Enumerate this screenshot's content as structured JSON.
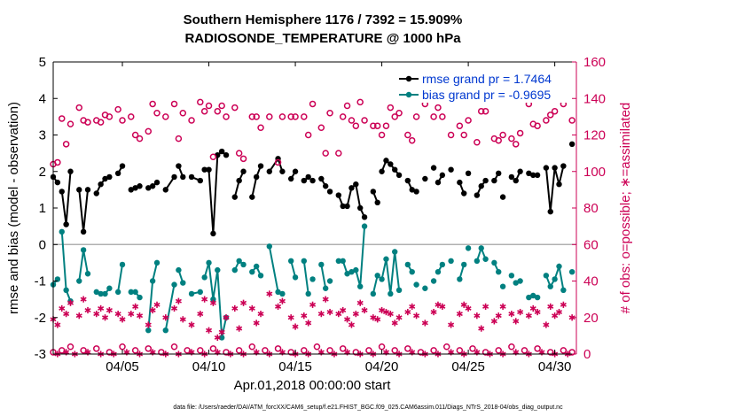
{
  "colors": {
    "rmse": "#000000",
    "bias": "#008080",
    "obs": "#cc0055",
    "zero_line": "#b0b0b0",
    "legend_text": "#0038d0"
  },
  "footer": "data file: /Users/raeder/DAI/ATM_forcXX/CAM6_setup/f.e21.FHIST_BGC.f09_025.CAM6assim.011/Diags_NTrS_2018-04/obs_diag_output.nc",
  "chart_data": {
    "type": "line",
    "title": "Southern Hemisphere 1176 / 7392 = 15.909%",
    "subtitle": "RADIOSONDE_TEMPERATURE @ 1000 hPa",
    "xlabel": "Apr.01,2018 00:00:00 start",
    "ylabel": "rmse and bias (model - observation)",
    "y2label": "# of obs: o=possible; ∗=assimilated",
    "xlim": [
      1.0,
      31.25
    ],
    "ylim": [
      -3,
      5
    ],
    "y2lim": [
      0,
      160
    ],
    "xticks": [
      5,
      10,
      15,
      20,
      25,
      30
    ],
    "xtick_labels": [
      "04/05",
      "04/10",
      "04/15",
      "04/20",
      "04/25",
      "04/30"
    ],
    "yticks": [
      -3,
      -2,
      -1,
      0,
      1,
      2,
      3,
      4,
      5
    ],
    "y2ticks": [
      0,
      20,
      40,
      60,
      80,
      100,
      120,
      140,
      160
    ],
    "grid": false,
    "zero_line": true,
    "legend": {
      "position": "top-right",
      "entries": [
        "rmse grand pr = 1.7464",
        "bias grand pr = -0.9695"
      ]
    },
    "time_step_days": 0.25,
    "series": [
      {
        "role": "rmse",
        "axis": "left",
        "x": [
          1.0,
          1.25,
          1.5,
          1.75,
          2.0,
          2.5,
          2.75,
          3.0,
          3.5,
          3.75,
          4.0,
          4.25,
          4.75,
          5.0,
          5.5,
          5.75,
          6.0,
          6.5,
          6.75,
          7.0,
          7.5,
          8.0,
          8.25,
          8.5,
          9.0,
          9.5,
          9.75,
          10.0,
          10.25,
          10.5,
          10.75,
          11.0,
          11.5,
          11.75,
          12.0,
          12.5,
          12.75,
          13.0,
          13.5,
          14.0,
          14.25,
          14.75,
          15.0,
          15.5,
          15.75,
          16.0,
          16.5,
          16.75,
          17.0,
          17.5,
          17.75,
          18.0,
          18.25,
          18.5,
          18.75,
          19.0,
          19.5,
          19.75,
          20.0,
          20.25,
          20.5,
          20.75,
          21.0,
          21.5,
          21.75,
          22.0,
          22.5,
          23.0,
          23.25,
          23.5,
          24.0,
          24.5,
          24.75,
          25.0,
          25.5,
          25.75,
          26.0,
          26.5,
          26.75,
          27.0,
          27.5,
          27.75,
          28.0,
          28.5,
          28.75,
          29.0,
          29.5,
          29.75,
          30.0,
          30.25,
          30.5,
          31.0
        ],
        "y": [
          1.85,
          1.7,
          1.45,
          0.55,
          2.0,
          1.5,
          0.35,
          1.5,
          1.4,
          1.65,
          1.8,
          1.85,
          1.95,
          2.15,
          1.5,
          1.55,
          1.6,
          1.55,
          1.6,
          1.7,
          1.5,
          1.85,
          2.15,
          1.85,
          1.85,
          1.75,
          2.05,
          2.05,
          0.3,
          2.45,
          2.55,
          2.45,
          1.3,
          1.75,
          2.0,
          1.3,
          1.85,
          2.15,
          2.0,
          2.35,
          2.0,
          1.8,
          2.0,
          1.75,
          1.85,
          1.75,
          1.8,
          1.6,
          1.45,
          1.35,
          1.05,
          1.05,
          1.55,
          1.65,
          1.0,
          0.75,
          1.45,
          1.15,
          2.0,
          2.3,
          2.2,
          2.05,
          1.9,
          1.75,
          1.5,
          1.45,
          1.8,
          2.1,
          1.7,
          1.9,
          2.05,
          1.7,
          1.4,
          1.95,
          1.35,
          1.6,
          1.75,
          1.75,
          1.95,
          1.3,
          1.85,
          1.75,
          2.0,
          1.95,
          1.9,
          1.9,
          2.1,
          0.9,
          2.1,
          1.65,
          2.15,
          2.75
        ],
        "segments_break_after": [
          1.25,
          2.0,
          3.0,
          4.25,
          5.0,
          6.0,
          7.0,
          8.0,
          8.5,
          9.5,
          11.0,
          12.0,
          13.0,
          14.25,
          15.0,
          15.75,
          16.0,
          16.75,
          17.0,
          19.0,
          19.75,
          21.0,
          21.75,
          22.0,
          22.5,
          23.0,
          23.5,
          24.0,
          24.75,
          25.0,
          26.0,
          26.75,
          27.0,
          27.5,
          28.0,
          28.75,
          29.0,
          30.5
        ]
      },
      {
        "role": "bias",
        "axis": "left",
        "x": [
          1.0,
          1.25,
          1.5,
          1.75,
          2.0,
          2.5,
          2.75,
          3.0,
          3.5,
          3.75,
          4.0,
          4.25,
          4.75,
          5.0,
          5.5,
          5.75,
          6.0,
          6.5,
          6.75,
          7.0,
          7.5,
          8.0,
          8.25,
          8.5,
          9.0,
          9.5,
          9.75,
          10.0,
          10.25,
          10.5,
          10.75,
          11.0,
          11.5,
          11.75,
          12.0,
          12.5,
          12.75,
          13.0,
          13.5,
          14.0,
          14.25,
          14.75,
          15.0,
          15.5,
          15.75,
          16.0,
          16.5,
          16.75,
          17.0,
          17.5,
          17.75,
          18.0,
          18.25,
          18.5,
          18.75,
          19.0,
          19.5,
          19.75,
          20.0,
          20.25,
          20.5,
          20.75,
          21.0,
          21.5,
          21.75,
          22.0,
          22.5,
          23.0,
          23.25,
          23.5,
          24.0,
          24.5,
          24.75,
          25.0,
          25.5,
          25.75,
          26.0,
          26.5,
          26.75,
          27.0,
          27.5,
          27.75,
          28.0,
          28.5,
          28.75,
          29.0,
          29.5,
          29.75,
          30.0,
          30.25,
          30.5,
          31.0
        ],
        "y": [
          -1.1,
          -0.95,
          0.35,
          -1.25,
          -1.55,
          -1.0,
          -0.15,
          -0.8,
          -1.3,
          -1.35,
          -1.35,
          -1.2,
          -1.3,
          -0.55,
          -1.3,
          -1.3,
          -1.45,
          -2.35,
          -1.0,
          -0.5,
          -2.35,
          -1.1,
          -0.7,
          -1.05,
          -1.35,
          -1.3,
          -0.9,
          -0.5,
          -1.5,
          -0.7,
          -2.55,
          -2.0,
          -0.7,
          -0.45,
          -0.55,
          -0.75,
          -0.6,
          -0.85,
          -0.05,
          -1.3,
          -1.35,
          -0.45,
          -0.9,
          -0.45,
          -1.35,
          -0.95,
          -0.55,
          -1.2,
          -1.0,
          -0.45,
          -0.45,
          -0.8,
          -0.75,
          -0.7,
          -1.15,
          0.5,
          -1.35,
          -0.85,
          -0.95,
          -0.4,
          -1.35,
          -0.2,
          -1.25,
          -0.55,
          -0.75,
          -1.1,
          -1.2,
          -1.0,
          -0.75,
          -0.55,
          -0.45,
          -0.95,
          -0.55,
          -0.1,
          -0.45,
          -0.1,
          -0.4,
          -0.5,
          -0.75,
          -1.15,
          -0.85,
          -1.05,
          -1.0,
          -1.45,
          -1.4,
          -1.45,
          -0.85,
          -1.15,
          -0.95,
          -0.6,
          -1.25,
          -0.75
        ],
        "segments_break_after": [
          1.25,
          2.0,
          3.0,
          4.25,
          5.0,
          6.0,
          7.0,
          8.0,
          8.5,
          9.5,
          11.0,
          12.0,
          13.0,
          14.25,
          15.0,
          15.75,
          16.0,
          16.75,
          17.0,
          19.0,
          19.75,
          21.0,
          21.75,
          22.0,
          22.5,
          23.0,
          23.5,
          24.0,
          24.75,
          25.0,
          26.0,
          26.75,
          27.0,
          27.5,
          28.0,
          28.75,
          29.0,
          30.5
        ]
      },
      {
        "role": "obs_possible",
        "axis": "right",
        "marker": "circle",
        "x": [
          1.0,
          1.25,
          1.5,
          1.75,
          2.0,
          2.5,
          2.75,
          3.0,
          3.5,
          3.75,
          4.0,
          4.25,
          4.75,
          5.0,
          5.5,
          5.75,
          6.0,
          6.5,
          6.75,
          7.0,
          7.5,
          8.0,
          8.25,
          8.5,
          9.0,
          9.5,
          9.75,
          10.0,
          10.25,
          10.5,
          10.75,
          11.0,
          11.5,
          11.75,
          12.0,
          12.5,
          12.75,
          13.0,
          13.5,
          14.0,
          14.25,
          14.75,
          15.0,
          15.5,
          15.75,
          16.0,
          16.5,
          16.75,
          17.0,
          17.5,
          17.75,
          18.0,
          18.25,
          18.5,
          18.75,
          19.0,
          19.5,
          19.75,
          20.0,
          20.25,
          20.5,
          20.75,
          21.0,
          21.5,
          21.75,
          22.0,
          22.5,
          23.0,
          23.25,
          23.5,
          24.0,
          24.5,
          24.75,
          25.0,
          25.5,
          25.75,
          26.0,
          26.5,
          26.75,
          27.0,
          27.5,
          27.75,
          28.0,
          28.5,
          28.75,
          29.0,
          29.5,
          29.75,
          30.0,
          30.25,
          30.5,
          31.0
        ],
        "y": [
          104,
          105,
          129,
          115,
          126,
          135,
          128,
          127,
          128,
          127,
          131,
          130,
          134,
          128,
          130,
          120,
          118,
          122,
          137,
          132,
          130,
          137,
          118,
          132,
          128,
          138,
          133,
          136,
          108,
          133,
          136,
          130,
          135,
          110,
          107,
          130,
          130,
          124,
          130,
          105,
          130,
          130,
          130,
          130,
          120,
          137,
          124,
          110,
          132,
          110,
          130,
          136,
          128,
          125,
          138,
          128,
          125,
          125,
          120,
          125,
          135,
          130,
          132,
          120,
          117,
          130,
          137,
          130,
          135,
          130,
          120,
          125,
          120,
          128,
          116,
          133,
          133,
          118,
          117,
          120,
          118,
          115,
          121,
          137,
          126,
          125,
          128,
          131,
          133,
          140,
          137,
          128
        ]
      },
      {
        "role": "obs_assimilated",
        "axis": "right",
        "marker": "asterisk",
        "x": [
          1.0,
          1.25,
          1.5,
          1.75,
          2.0,
          2.5,
          2.75,
          3.0,
          3.5,
          3.75,
          4.0,
          4.25,
          4.75,
          5.0,
          5.5,
          5.75,
          6.0,
          6.5,
          6.75,
          7.0,
          7.5,
          8.0,
          8.25,
          8.5,
          9.0,
          9.5,
          9.75,
          10.0,
          10.25,
          10.5,
          10.75,
          11.0,
          11.5,
          11.75,
          12.0,
          12.5,
          12.75,
          13.0,
          13.5,
          14.0,
          14.25,
          14.75,
          15.0,
          15.5,
          15.75,
          16.0,
          16.5,
          16.75,
          17.0,
          17.5,
          17.75,
          18.0,
          18.25,
          18.5,
          18.75,
          19.0,
          19.5,
          19.75,
          20.0,
          20.25,
          20.5,
          20.75,
          21.0,
          21.5,
          21.75,
          22.0,
          22.5,
          23.0,
          23.25,
          23.5,
          24.0,
          24.5,
          24.75,
          25.0,
          25.5,
          25.75,
          26.0,
          26.5,
          26.75,
          27.0,
          27.5,
          27.75,
          28.0,
          28.5,
          28.75,
          29.0,
          29.5,
          29.75,
          30.0,
          30.25,
          30.5,
          31.0
        ],
        "y": [
          19,
          16,
          25,
          22,
          28,
          21,
          30,
          24,
          22,
          25,
          20,
          24,
          22,
          19,
          22,
          26,
          21,
          16,
          24,
          27,
          20,
          25,
          29,
          19,
          16,
          22,
          30,
          13,
          28,
          9,
          12,
          20,
          25,
          14,
          28,
          25,
          17,
          22,
          33,
          26,
          29,
          20,
          15,
          21,
          17,
          27,
          22,
          30,
          23,
          22,
          24,
          19,
          16,
          22,
          28,
          24,
          20,
          19,
          24,
          23,
          22,
          17,
          20,
          23,
          26,
          21,
          17,
          23,
          27,
          26,
          16,
          22,
          27,
          25,
          21,
          14,
          26,
          18,
          21,
          26,
          22,
          18,
          23,
          21,
          25,
          23,
          16,
          26,
          21,
          23,
          27,
          20
        ]
      },
      {
        "role": "obs_possible_low",
        "axis": "right",
        "marker": "circle",
        "x": [
          1.0,
          1.5,
          2.0,
          2.75,
          3.5,
          4.25,
          5.0,
          5.75,
          6.5,
          7.25,
          8.0,
          8.75,
          9.5,
          10.25,
          11.0,
          11.75,
          12.5,
          13.25,
          14.0,
          14.75,
          15.5,
          16.25,
          17.0,
          17.75,
          18.5,
          19.25,
          20.0,
          20.75,
          21.5,
          22.25,
          23.0,
          23.75,
          24.5,
          25.25,
          26.0,
          26.75,
          27.5,
          28.25,
          29.0,
          29.75,
          30.5,
          31.0
        ],
        "y": [
          1,
          2,
          4,
          2,
          3,
          1,
          4,
          2,
          3,
          1,
          4,
          2,
          2,
          3,
          1,
          2,
          4,
          2,
          3,
          1,
          2,
          4,
          2,
          3,
          1,
          2,
          4,
          2,
          3,
          1,
          2,
          4,
          2,
          3,
          1,
          2,
          4,
          2,
          3,
          1,
          2,
          1
        ]
      },
      {
        "role": "obs_assimilated_low",
        "axis": "right",
        "marker": "asterisk",
        "x": [
          1.25,
          1.75,
          2.25,
          3.0,
          3.75,
          4.5,
          5.25,
          6.0,
          6.75,
          7.5,
          8.25,
          9.0,
          9.75,
          10.5,
          11.25,
          12.0,
          12.75,
          13.5,
          14.25,
          15.0,
          15.75,
          16.5,
          17.25,
          18.0,
          18.75,
          19.5,
          20.25,
          21.0,
          21.75,
          22.5,
          23.25,
          24.0,
          24.75,
          25.5,
          26.25,
          27.0,
          27.75,
          28.5,
          29.25,
          30.0,
          30.75
        ],
        "y": [
          0,
          1,
          0,
          1,
          0,
          0,
          1,
          0,
          1,
          0,
          0,
          1,
          0,
          1,
          0,
          0,
          1,
          0,
          1,
          0,
          0,
          1,
          0,
          1,
          0,
          0,
          1,
          0,
          1,
          0,
          0,
          1,
          0,
          1,
          0,
          0,
          1,
          0,
          1,
          0,
          0
        ]
      }
    ]
  }
}
